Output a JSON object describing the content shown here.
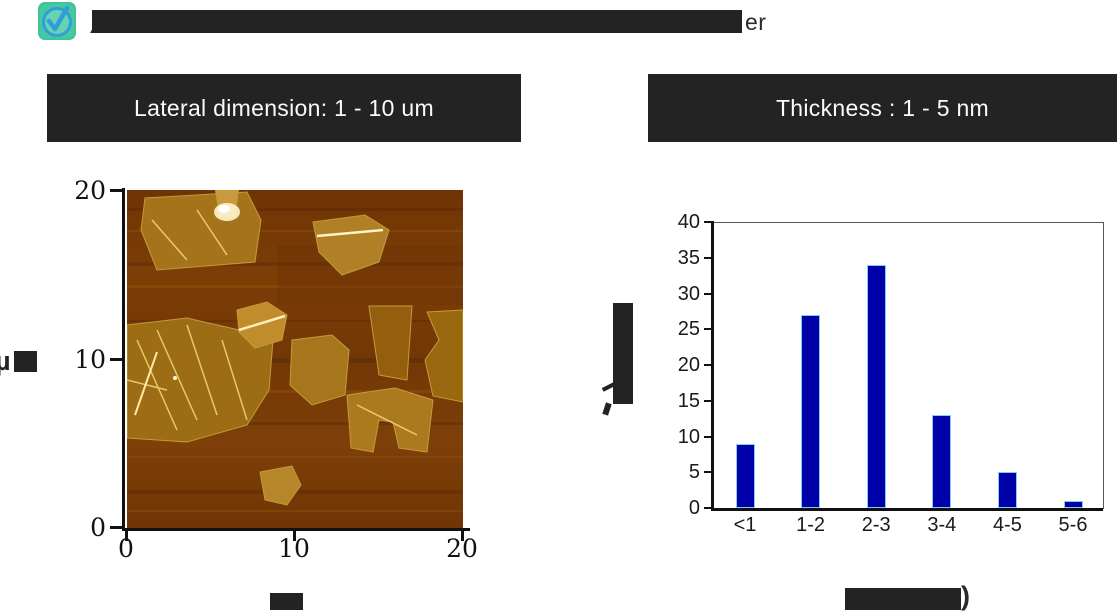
{
  "title": {
    "icon": "check-badge-icon",
    "redacted": true,
    "visible_fragment": "er"
  },
  "panels": {
    "left_header": "Lateral dimension: 1 - 10 um",
    "right_header": "Thickness : 1 - 5 nm"
  },
  "afm": {
    "description": "AFM micrograph of flakes, brown background with gold sheets",
    "x_ticks": [
      "0",
      "10",
      "20"
    ],
    "y_ticks": [
      "20",
      "10",
      "0"
    ],
    "axis_range_um": [
      0,
      20
    ],
    "y_axis_visible_fragment": "µ",
    "x_axis_label_redacted": true
  },
  "chart_data": {
    "type": "bar",
    "categories": [
      "<1",
      "1-2",
      "2-3",
      "3-4",
      "4-5",
      "5-6"
    ],
    "values": [
      9,
      27,
      34,
      13,
      5,
      1
    ],
    "title": "",
    "xlabel": "",
    "ylabel": "",
    "xlabel_redacted": true,
    "ylabel_redacted": true,
    "xlabel_visible_fragment": ")",
    "ylim": [
      0,
      40
    ],
    "y_ticks": [
      0,
      5,
      10,
      15,
      20,
      25,
      30,
      35,
      40
    ],
    "grid": false,
    "legend": "none",
    "bar_color": "#0000A8",
    "bar_edge_color": "#7FD0F0",
    "frame": "full-box"
  },
  "colors": {
    "header_bg": "#232323",
    "header_text": "#FAFAFA",
    "redaction": "#232323",
    "icon_teal": "#3EC49B",
    "icon_blue": "#2E9FD8",
    "afm_background": "#7A3B06",
    "afm_flake": "#B0801F"
  }
}
